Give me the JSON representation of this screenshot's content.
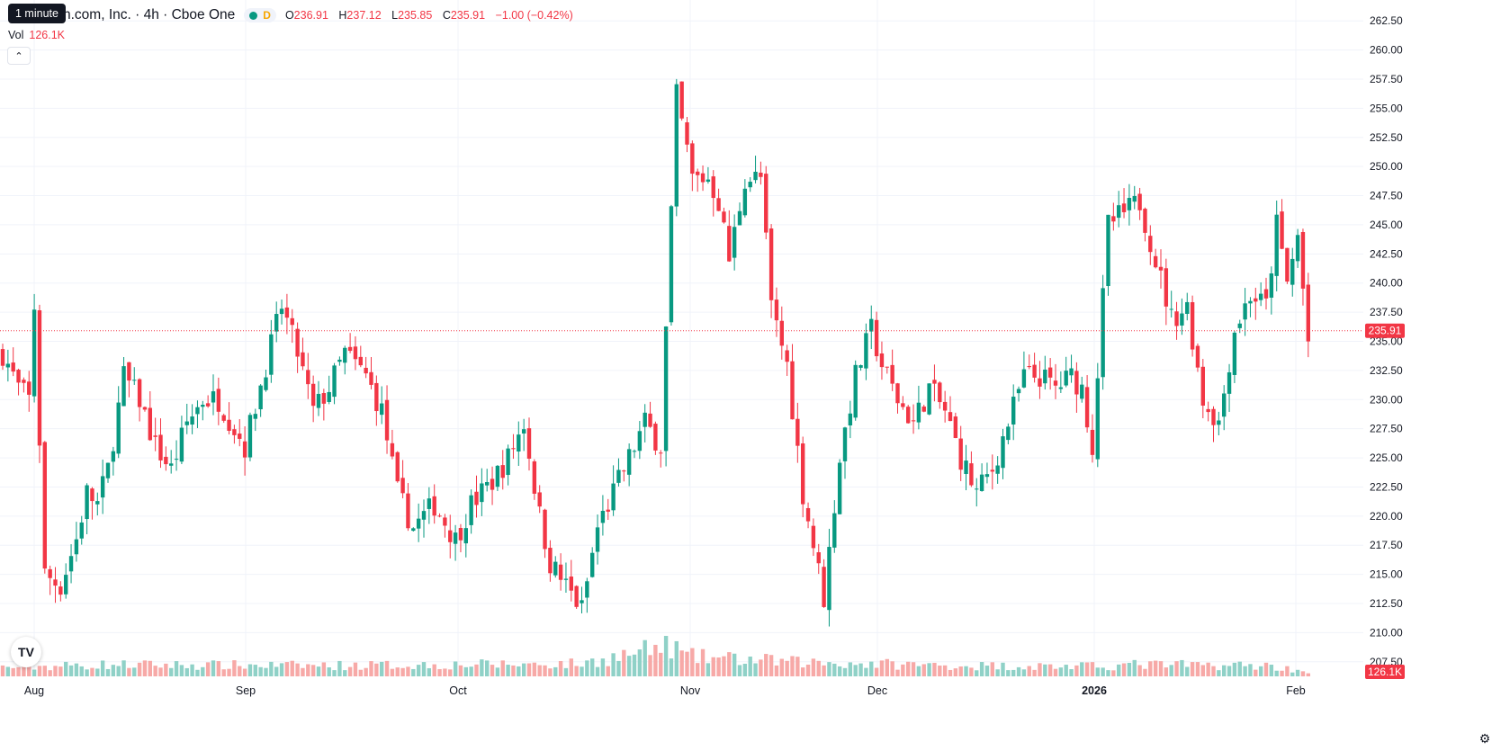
{
  "tooltip": "1 minute",
  "header": {
    "title": "n.com, Inc. · 4h · Cboe One",
    "market_status": "D",
    "ohlc": {
      "o_label": "O",
      "o": "236.91",
      "h_label": "H",
      "h": "237.12",
      "l_label": "L",
      "l": "235.85",
      "c_label": "C",
      "c": "235.91",
      "change": "−1.00 (−0.42%)"
    }
  },
  "volume_legend": {
    "label": "Vol",
    "value": "126.1K"
  },
  "icons": {
    "collapse": "chevron-up-icon",
    "logo": "tradingview-logo",
    "settings": "gear-icon"
  },
  "logo_text": "TV",
  "colors": {
    "up": "#089981",
    "down": "#f23645",
    "up_volume": "#8fd1c7",
    "down_volume": "#f7a9a7",
    "grid": "#f0f3fa",
    "text": "#131722"
  },
  "chart_data": {
    "type": "candlestick",
    "interval": "4h",
    "ylim": [
      206.25,
      263.75
    ],
    "y_ticks": [
      "262.50",
      "260.00",
      "257.50",
      "255.00",
      "252.50",
      "250.00",
      "247.50",
      "245.00",
      "242.50",
      "240.00",
      "237.50",
      "235.00",
      "232.50",
      "230.00",
      "227.50",
      "225.00",
      "222.50",
      "220.00",
      "217.50",
      "215.00",
      "212.50",
      "210.00",
      "207.50"
    ],
    "x_labels": [
      "Aug",
      "Sep",
      "Oct",
      "Nov",
      "Dec",
      "2026",
      "Feb"
    ],
    "bold_x_labels": [
      "2026"
    ],
    "last_price": "235.91",
    "last_volume": "126.1K",
    "grid": true,
    "anchors": [
      [
        0,
        234
      ],
      [
        3,
        231
      ],
      [
        5,
        230
      ],
      [
        6,
        238
      ],
      [
        8,
        215
      ],
      [
        11,
        214
      ],
      [
        14,
        218
      ],
      [
        16,
        222
      ],
      [
        18,
        221
      ],
      [
        20,
        224
      ],
      [
        23,
        232
      ],
      [
        26,
        230
      ],
      [
        29,
        226
      ],
      [
        32,
        224
      ],
      [
        35,
        228
      ],
      [
        38,
        230
      ],
      [
        41,
        230
      ],
      [
        46,
        226
      ],
      [
        50,
        233
      ],
      [
        53,
        238
      ],
      [
        56,
        234
      ],
      [
        59,
        229
      ],
      [
        62,
        231
      ],
      [
        65,
        234
      ],
      [
        69,
        232
      ],
      [
        72,
        229
      ],
      [
        75,
        222
      ],
      [
        78,
        219
      ],
      [
        82,
        221
      ],
      [
        86,
        218
      ],
      [
        89,
        221
      ],
      [
        93,
        223
      ],
      [
        96,
        225
      ],
      [
        99,
        228
      ],
      [
        102,
        220
      ],
      [
        104,
        216
      ],
      [
        107,
        214
      ],
      [
        110,
        212
      ],
      [
        113,
        219
      ],
      [
        116,
        222
      ],
      [
        119,
        225
      ],
      [
        122,
        228
      ],
      [
        125,
        226
      ],
      [
        128,
        256
      ],
      [
        131,
        249
      ],
      [
        134,
        249
      ],
      [
        136,
        247
      ],
      [
        138,
        242
      ],
      [
        141,
        249
      ],
      [
        144,
        249
      ],
      [
        146,
        238
      ],
      [
        149,
        233
      ],
      [
        152,
        222
      ],
      [
        156,
        213
      ],
      [
        159,
        225
      ],
      [
        162,
        232
      ],
      [
        165,
        236
      ],
      [
        167,
        233
      ],
      [
        170,
        230
      ],
      [
        173,
        228
      ],
      [
        176,
        231
      ],
      [
        179,
        229
      ],
      [
        182,
        225
      ],
      [
        185,
        222
      ],
      [
        188,
        224
      ],
      [
        191,
        228
      ],
      [
        194,
        232
      ],
      [
        197,
        232
      ],
      [
        200,
        231
      ],
      [
        203,
        232
      ],
      [
        205,
        231
      ],
      [
        207,
        226
      ],
      [
        210,
        245
      ],
      [
        213,
        246
      ],
      [
        216,
        247
      ],
      [
        219,
        242
      ],
      [
        222,
        237
      ],
      [
        225,
        238
      ],
      [
        228,
        230
      ],
      [
        231,
        228
      ],
      [
        234,
        236
      ],
      [
        237,
        239
      ],
      [
        240,
        238
      ],
      [
        242,
        245
      ],
      [
        244,
        240
      ],
      [
        246,
        244
      ],
      [
        248,
        235
      ]
    ],
    "volume_anchors": [
      [
        0,
        10
      ],
      [
        20,
        13
      ],
      [
        60,
        12
      ],
      [
        110,
        14
      ],
      [
        127,
        34
      ],
      [
        130,
        22
      ],
      [
        150,
        16
      ],
      [
        180,
        12
      ],
      [
        208,
        11
      ],
      [
        215,
        13
      ],
      [
        240,
        12
      ],
      [
        248,
        5
      ]
    ]
  }
}
